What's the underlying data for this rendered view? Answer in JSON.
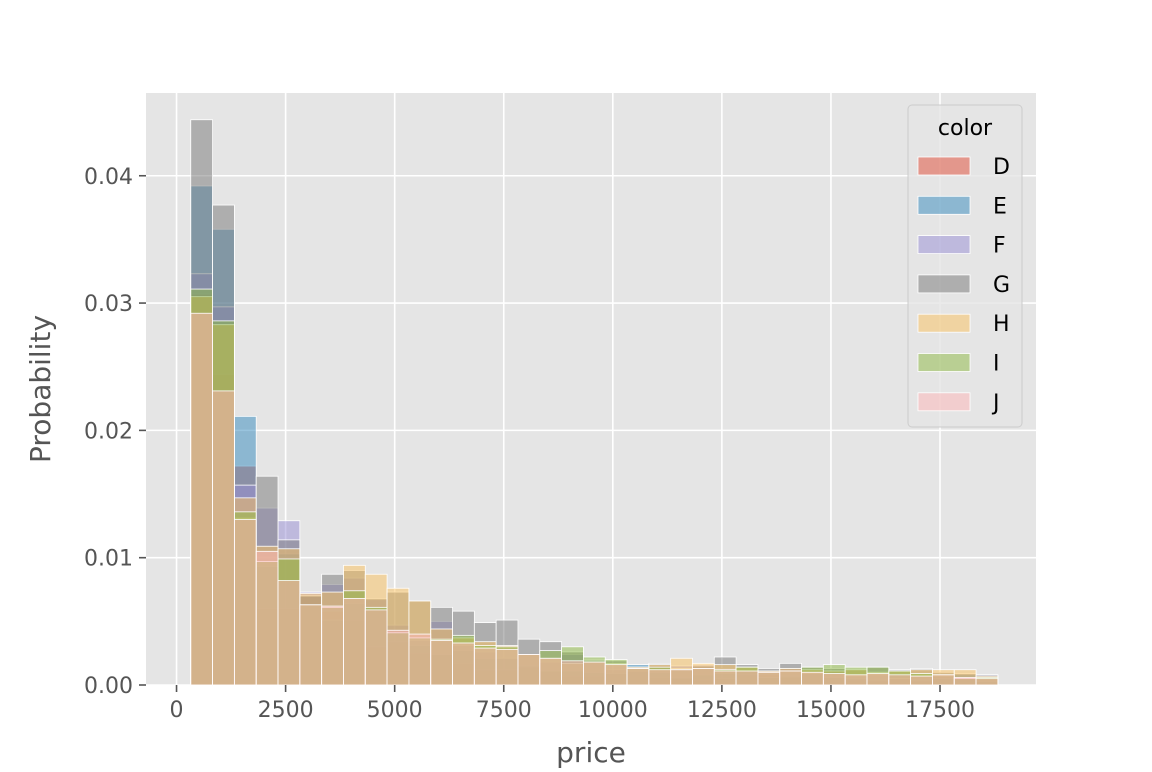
{
  "chart_data": {
    "type": "bar",
    "xlabel": "price",
    "ylabel": "Probability",
    "xlim": [
      -700,
      19700
    ],
    "ylim": [
      0,
      0.0465
    ],
    "xticks": [
      0,
      2500,
      5000,
      7500,
      10000,
      12500,
      15000,
      17500
    ],
    "xtick_labels": [
      "0",
      "2500",
      "5000",
      "7500",
      "10000",
      "12500",
      "15000",
      "17500"
    ],
    "yticks": [
      0,
      0.01,
      0.02,
      0.03,
      0.04
    ],
    "ytick_labels": [
      "0.00",
      "0.01",
      "0.02",
      "0.03",
      "0.04"
    ],
    "grid": true,
    "legend": {
      "title": "color",
      "placement": "top-right"
    },
    "bin_edges": [
      326,
      826,
      1326,
      1826,
      2326,
      2826,
      3326,
      3826,
      4326,
      4826,
      5326,
      5826,
      6326,
      6826,
      7326,
      7826,
      8326,
      8826,
      9326,
      9826,
      10326,
      10826,
      11326,
      11826,
      12326,
      12826,
      13326,
      13826,
      14326,
      14826,
      15326,
      15826,
      16326,
      16826,
      17326,
      17826,
      18326,
      18826
    ],
    "series": [
      {
        "name": "D",
        "color": "#E24A33",
        "values": [
          0.0307,
          0.0244,
          0.0172,
          0.006,
          0.006,
          0.007,
          0.0058,
          0.0051,
          0.003,
          0.0034,
          0.0025,
          0.0024,
          0.0017,
          0.0012,
          0.0012,
          0.0014,
          0.0011,
          0.0007,
          0.0007,
          0.0009,
          0.0012,
          0.0006,
          0.0005,
          0.0004,
          0.0005,
          0.0008,
          0.0008,
          0.0006,
          0.001,
          0.0006,
          0.0004,
          0.0003,
          0.0005,
          0.0003,
          0.0008,
          0.0006,
          0.0004
        ]
      },
      {
        "name": "E",
        "color": "#348ABD",
        "values": [
          0.0392,
          0.0358,
          0.0211,
          0.0093,
          0.0103,
          0.007,
          0.0051,
          0.0064,
          0.006,
          0.0043,
          0.0031,
          0.0024,
          0.0027,
          0.0021,
          0.0021,
          0.0015,
          0.0011,
          0.0011,
          0.001,
          0.0009,
          0.0016,
          0.001,
          0.0006,
          0.0008,
          0.0009,
          0.0011,
          0.0006,
          0.0007,
          0.0009,
          0.0006,
          0.0005,
          0.0004,
          0.0009,
          0.0004,
          0.0005,
          0.0008,
          0.0003
        ]
      },
      {
        "name": "F",
        "color": "#988ED5",
        "values": [
          0.0323,
          0.0297,
          0.0157,
          0.0139,
          0.0129,
          0.0073,
          0.0079,
          0.0084,
          0.0067,
          0.0047,
          0.0035,
          0.005,
          0.0031,
          0.0026,
          0.0021,
          0.0024,
          0.0018,
          0.0024,
          0.002,
          0.0012,
          0.0011,
          0.0015,
          0.0015,
          0.0016,
          0.0013,
          0.0011,
          0.001,
          0.0013,
          0.0009,
          0.0011,
          0.0007,
          0.0008,
          0.0005,
          0.0007,
          0.0007,
          0.0006,
          0.0008
        ]
      },
      {
        "name": "G",
        "color": "#777777",
        "values": [
          0.0444,
          0.0377,
          0.0131,
          0.0164,
          0.0114,
          0.007,
          0.0087,
          0.009,
          0.0068,
          0.0073,
          0.0066,
          0.0061,
          0.0058,
          0.0049,
          0.0051,
          0.0036,
          0.0034,
          0.0026,
          0.0019,
          0.0019,
          0.0014,
          0.0017,
          0.0013,
          0.0015,
          0.0022,
          0.0016,
          0.0013,
          0.0017,
          0.0014,
          0.0013,
          0.0012,
          0.0014,
          0.0012,
          0.0013,
          0.001,
          0.0009,
          0.0008
        ]
      },
      {
        "name": "H",
        "color": "#FBC15E",
        "values": [
          0.0305,
          0.0283,
          0.0147,
          0.0109,
          0.0107,
          0.0072,
          0.0073,
          0.0094,
          0.0087,
          0.0076,
          0.0066,
          0.0044,
          0.0037,
          0.0034,
          0.0031,
          0.0024,
          0.0021,
          0.0017,
          0.0018,
          0.0017,
          0.0014,
          0.0016,
          0.0021,
          0.0017,
          0.0016,
          0.0014,
          0.0011,
          0.0013,
          0.0012,
          0.0011,
          0.0012,
          0.001,
          0.0011,
          0.0012,
          0.0012,
          0.0012,
          0.0007
        ]
      },
      {
        "name": "I",
        "color": "#8EBA42",
        "values": [
          0.0311,
          0.0286,
          0.0136,
          0.0097,
          0.0099,
          0.0063,
          0.0061,
          0.0074,
          0.0061,
          0.0041,
          0.0037,
          0.0036,
          0.0039,
          0.0031,
          0.003,
          0.0024,
          0.0027,
          0.003,
          0.0022,
          0.002,
          0.0013,
          0.0014,
          0.0012,
          0.0013,
          0.0012,
          0.0014,
          0.001,
          0.0011,
          0.0014,
          0.0016,
          0.0014,
          0.0014,
          0.0011,
          0.0009,
          0.0008,
          0.0005,
          0.0006
        ]
      },
      {
        "name": "J",
        "color": "#FFB5B8",
        "values": [
          0.0292,
          0.0231,
          0.013,
          0.0105,
          0.0082,
          0.0063,
          0.0062,
          0.0068,
          0.0059,
          0.0043,
          0.004,
          0.0035,
          0.0033,
          0.0029,
          0.0028,
          0.0024,
          0.0021,
          0.0019,
          0.0018,
          0.0016,
          0.0013,
          0.0012,
          0.0012,
          0.0013,
          0.0011,
          0.0011,
          0.001,
          0.0011,
          0.001,
          0.0009,
          0.0008,
          0.0009,
          0.0008,
          0.0007,
          0.0008,
          0.0006,
          0.0005
        ]
      }
    ]
  }
}
